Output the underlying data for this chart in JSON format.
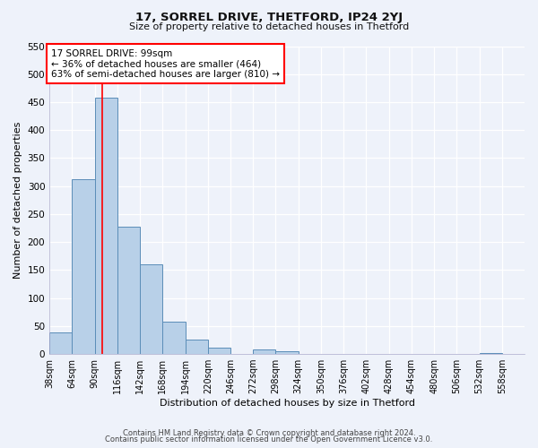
{
  "title": "17, SORREL DRIVE, THETFORD, IP24 2YJ",
  "subtitle": "Size of property relative to detached houses in Thetford",
  "xlabel": "Distribution of detached houses by size in Thetford",
  "ylabel": "Number of detached properties",
  "bar_color": "#b8d0e8",
  "bar_edge_color": "#5b8db8",
  "background_color": "#eef2fa",
  "grid_color": "#d0d8f0",
  "bin_edges": [
    38,
    64,
    90,
    116,
    142,
    168,
    194,
    220,
    246,
    272,
    298,
    324,
    350,
    376,
    402,
    428,
    454,
    480,
    506,
    532,
    558
  ],
  "bin_labels": [
    "38sqm",
    "64sqm",
    "90sqm",
    "116sqm",
    "142sqm",
    "168sqm",
    "194sqm",
    "220sqm",
    "246sqm",
    "272sqm",
    "298sqm",
    "324sqm",
    "350sqm",
    "376sqm",
    "402sqm",
    "428sqm",
    "454sqm",
    "480sqm",
    "506sqm",
    "532sqm",
    "558sqm"
  ],
  "bar_heights": [
    38,
    312,
    458,
    228,
    160,
    57,
    26,
    12,
    0,
    8,
    5,
    0,
    0,
    0,
    0,
    0,
    0,
    0,
    0,
    2
  ],
  "property_line_x": 99,
  "annotation_title": "17 SORREL DRIVE: 99sqm",
  "annotation_line1": "← 36% of detached houses are smaller (464)",
  "annotation_line2": "63% of semi-detached houses are larger (810) →",
  "ylim": [
    0,
    550
  ],
  "yticks": [
    0,
    50,
    100,
    150,
    200,
    250,
    300,
    350,
    400,
    450,
    500,
    550
  ],
  "footnote1": "Contains HM Land Registry data © Crown copyright and database right 2024.",
  "footnote2": "Contains public sector information licensed under the Open Government Licence v3.0."
}
